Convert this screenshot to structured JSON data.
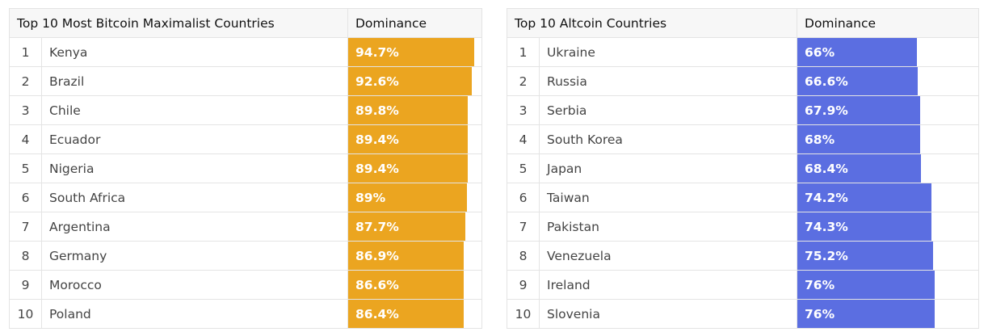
{
  "chart_data": [
    {
      "type": "table",
      "columns": [
        "Top 10 Most Bitcoin Maximalist Countries",
        "Dominance"
      ],
      "bar_color": "#eba520",
      "value_max": 100,
      "rows": [
        {
          "rank": "1",
          "country": "Kenya",
          "value": 94.7,
          "label": "94.7%"
        },
        {
          "rank": "2",
          "country": "Brazil",
          "value": 92.6,
          "label": "92.6%"
        },
        {
          "rank": "3",
          "country": "Chile",
          "value": 89.8,
          "label": "89.8%"
        },
        {
          "rank": "4",
          "country": "Ecuador",
          "value": 89.4,
          "label": "89.4%"
        },
        {
          "rank": "5",
          "country": "Nigeria",
          "value": 89.4,
          "label": "89.4%"
        },
        {
          "rank": "6",
          "country": "South Africa",
          "value": 89,
          "label": "89%"
        },
        {
          "rank": "7",
          "country": "Argentina",
          "value": 87.7,
          "label": "87.7%"
        },
        {
          "rank": "8",
          "country": "Germany",
          "value": 86.9,
          "label": "86.9%"
        },
        {
          "rank": "9",
          "country": "Morocco",
          "value": 86.6,
          "label": "86.6%"
        },
        {
          "rank": "10",
          "country": "Poland",
          "value": 86.4,
          "label": "86.4%"
        }
      ]
    },
    {
      "type": "table",
      "columns": [
        "Top 10 Altcoin Countries",
        "Dominance"
      ],
      "bar_color": "#5b6ee1",
      "value_max": 100,
      "rows": [
        {
          "rank": "1",
          "country": "Ukraine",
          "value": 66,
          "label": "66%"
        },
        {
          "rank": "2",
          "country": "Russia",
          "value": 66.6,
          "label": "66.6%"
        },
        {
          "rank": "3",
          "country": "Serbia",
          "value": 67.9,
          "label": "67.9%"
        },
        {
          "rank": "4",
          "country": "South Korea",
          "value": 68,
          "label": "68%"
        },
        {
          "rank": "5",
          "country": "Japan",
          "value": 68.4,
          "label": "68.4%"
        },
        {
          "rank": "6",
          "country": "Taiwan",
          "value": 74.2,
          "label": "74.2%"
        },
        {
          "rank": "7",
          "country": "Pakistan",
          "value": 74.3,
          "label": "74.3%"
        },
        {
          "rank": "8",
          "country": "Venezuela",
          "value": 75.2,
          "label": "75.2%"
        },
        {
          "rank": "9",
          "country": "Ireland",
          "value": 76,
          "label": "76%"
        },
        {
          "rank": "10",
          "country": "Slovenia",
          "value": 76,
          "label": "76%"
        }
      ]
    }
  ]
}
